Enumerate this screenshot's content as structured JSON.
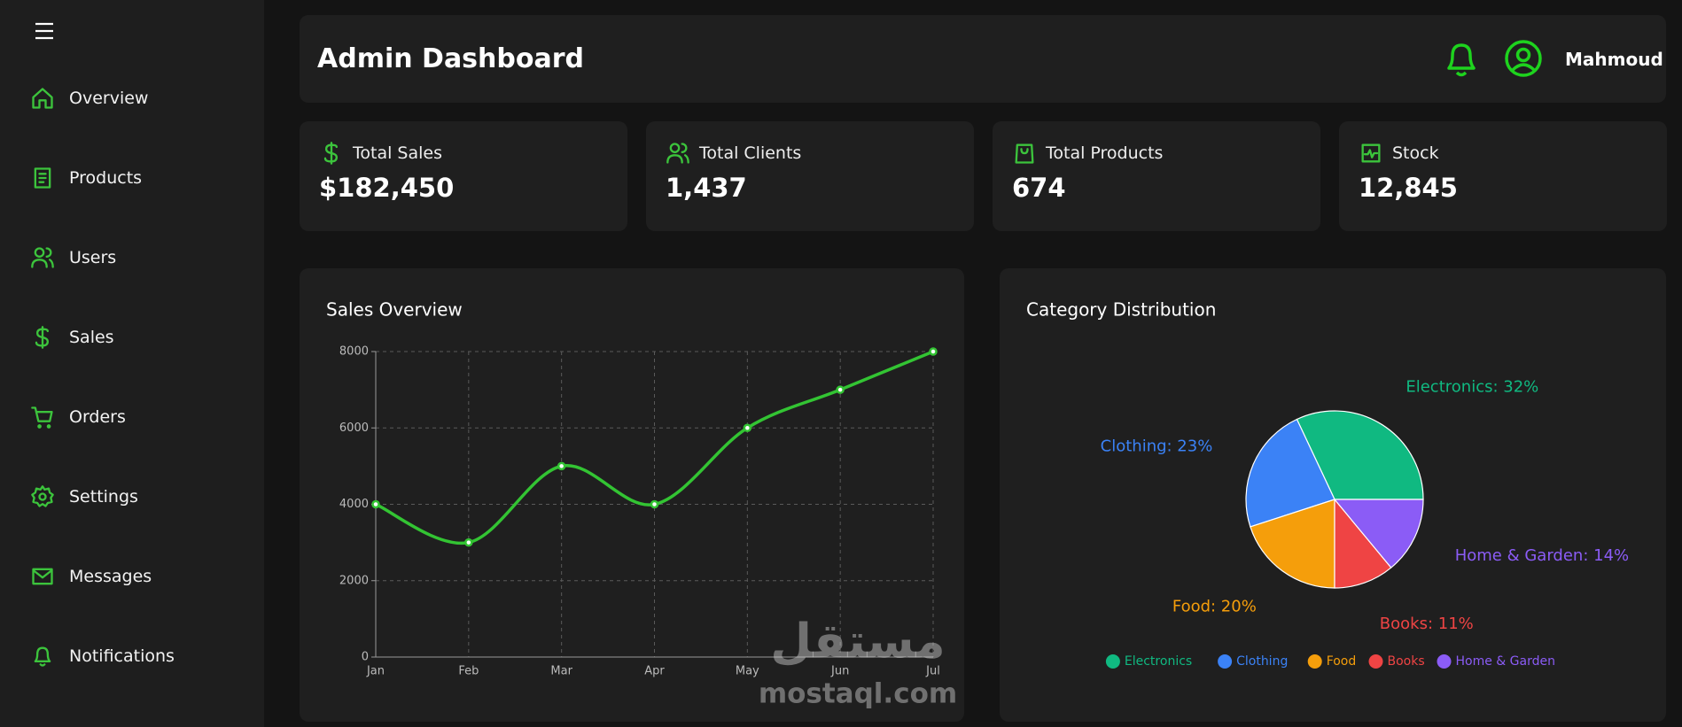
{
  "sidebar": {
    "items": [
      "Overview",
      "Products",
      "Users",
      "Sales",
      "Orders",
      "Settings",
      "Messages",
      "Notifications"
    ]
  },
  "header": {
    "title": "Admin Dashboard",
    "user": "Mahmoud"
  },
  "stats": [
    {
      "label": "Total Sales",
      "value": "$182,450"
    },
    {
      "label": "Total Clients",
      "value": "1,437"
    },
    {
      "label": "Total Products",
      "value": "674"
    },
    {
      "label": "Stock",
      "value": "12,845"
    }
  ],
  "chart_data": [
    {
      "type": "line",
      "title": "Sales Overview",
      "categories": [
        "Jan",
        "Feb",
        "Mar",
        "Apr",
        "May",
        "Jun",
        "Jul"
      ],
      "values": [
        4000,
        3000,
        5000,
        4000,
        6000,
        7000,
        8000
      ],
      "color": "#33c433",
      "ylim": [
        0,
        8000
      ],
      "yticks": [
        0,
        2000,
        4000,
        6000,
        8000
      ],
      "grid": true
    },
    {
      "type": "pie",
      "title": "Category Distribution",
      "categories": [
        "Electronics",
        "Clothing",
        "Food",
        "Books",
        "Home & Garden"
      ],
      "values": [
        32,
        23,
        20,
        11,
        14
      ],
      "value_labels": [
        "Electronics: 32%",
        "Clothing: 23%",
        "Food: 20%",
        "Books: 11%",
        "Home & Garden: 14%"
      ],
      "colors": [
        "#10b981",
        "#3b82f6",
        "#f59e0b",
        "#ef4444",
        "#8b5cf6"
      ],
      "legend": "bottom"
    }
  ],
  "watermark": {
    "arabic": "مستقل",
    "text": "mostaql.com"
  }
}
